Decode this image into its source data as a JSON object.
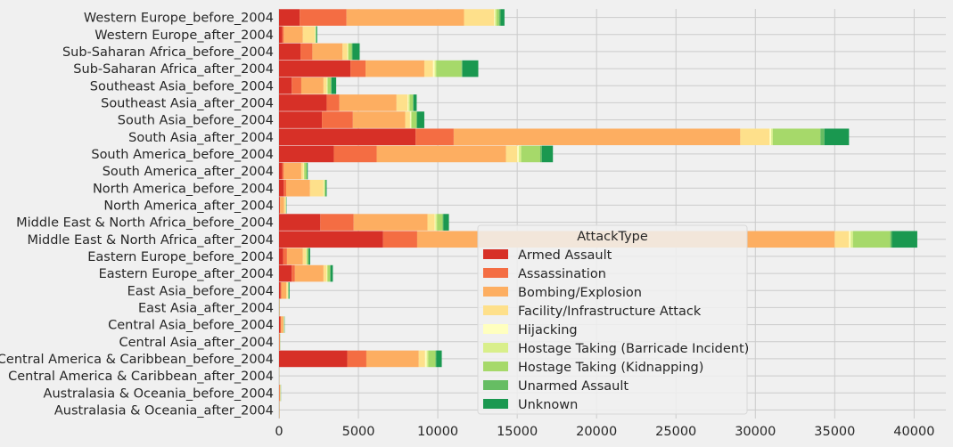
{
  "chart_data": {
    "type": "bar",
    "orientation": "horizontal",
    "stacked": true,
    "categories": [
      "Western Europe_before_2004",
      "Western Europe_after_2004",
      "Sub-Saharan Africa_before_2004",
      "Sub-Saharan Africa_after_2004",
      "Southeast Asia_before_2004",
      "Southeast Asia_after_2004",
      "South Asia_before_2004",
      "South Asia_after_2004",
      "South America_before_2004",
      "South America_after_2004",
      "North America_before_2004",
      "North America_after_2004",
      "Middle East & North Africa_before_2004",
      "Middle East & North Africa_after_2004",
      "Eastern Europe_before_2004",
      "Eastern Europe_after_2004",
      "East Asia_before_2004",
      "East Asia_after_2004",
      "Central Asia_before_2004",
      "Central Asia_after_2004",
      "Central America & Caribbean_before_2004",
      "Central America & Caribbean_after_2004",
      "Australasia & Oceania_before_2004",
      "Australasia & Oceania_after_2004"
    ],
    "series": [
      {
        "name": "Armed Assault",
        "color": "#d73027",
        "values": [
          1300,
          200,
          1350,
          4500,
          800,
          3000,
          2700,
          8600,
          3450,
          200,
          300,
          50,
          2600,
          6550,
          250,
          800,
          100,
          10,
          80,
          20,
          4300,
          5,
          20,
          10
        ]
      },
      {
        "name": "Assassination",
        "color": "#f46d43",
        "values": [
          2950,
          100,
          750,
          950,
          600,
          800,
          1950,
          2400,
          2700,
          100,
          150,
          20,
          2100,
          2150,
          250,
          200,
          50,
          5,
          40,
          10,
          1200,
          5,
          10,
          5
        ]
      },
      {
        "name": "Bombing/Explosion",
        "color": "#fdae61",
        "values": [
          7400,
          1200,
          1900,
          3700,
          1400,
          3600,
          3300,
          18050,
          8150,
          1100,
          1500,
          250,
          4650,
          26300,
          1000,
          1800,
          300,
          15,
          150,
          30,
          3300,
          5,
          40,
          10
        ]
      },
      {
        "name": "Facility/Infrastructure Attack",
        "color": "#fee08b",
        "values": [
          1900,
          750,
          300,
          550,
          200,
          700,
          300,
          1850,
          700,
          150,
          850,
          100,
          450,
          900,
          200,
          200,
          100,
          5,
          30,
          10,
          400,
          3,
          20,
          5
        ]
      },
      {
        "name": "Hijacking",
        "color": "#ffffbf",
        "values": [
          50,
          30,
          30,
          100,
          20,
          50,
          50,
          100,
          100,
          20,
          30,
          10,
          50,
          100,
          20,
          30,
          10,
          2,
          5,
          2,
          100,
          1,
          5,
          1
        ]
      },
      {
        "name": "Hostage Taking (Barricade Incident)",
        "color": "#d9ef8b",
        "values": [
          100,
          20,
          50,
          100,
          50,
          80,
          50,
          100,
          150,
          20,
          40,
          5,
          100,
          150,
          20,
          30,
          10,
          2,
          5,
          2,
          100,
          1,
          5,
          1
        ]
      },
      {
        "name": "Hostage Taking (Kidnapping)",
        "color": "#a6d96a",
        "values": [
          150,
          30,
          200,
          1600,
          200,
          200,
          300,
          3000,
          1200,
          150,
          50,
          10,
          350,
          2350,
          100,
          150,
          30,
          3,
          15,
          3,
          450,
          2,
          5,
          2
        ]
      },
      {
        "name": "Unarmed Assault",
        "color": "#66bd63",
        "values": [
          100,
          20,
          50,
          50,
          30,
          40,
          50,
          250,
          100,
          20,
          30,
          10,
          50,
          100,
          20,
          30,
          10,
          2,
          5,
          2,
          50,
          1,
          5,
          1
        ]
      },
      {
        "name": "Unknown",
        "color": "#1a9850",
        "values": [
          250,
          50,
          450,
          1000,
          300,
          200,
          450,
          1550,
          700,
          50,
          50,
          20,
          350,
          1600,
          100,
          150,
          50,
          5,
          20,
          5,
          350,
          2,
          10,
          3
        ]
      }
    ],
    "xlim": [
      0,
      42000
    ],
    "xticks": [
      "0",
      "5000",
      "10000",
      "15000",
      "20000",
      "25000",
      "30000",
      "35000",
      "40000"
    ],
    "xtick_values": [
      0,
      5000,
      10000,
      15000,
      20000,
      25000,
      30000,
      35000,
      40000
    ],
    "grid": true,
    "legend": {
      "title": "AttackType",
      "placement": "lower-center"
    }
  }
}
